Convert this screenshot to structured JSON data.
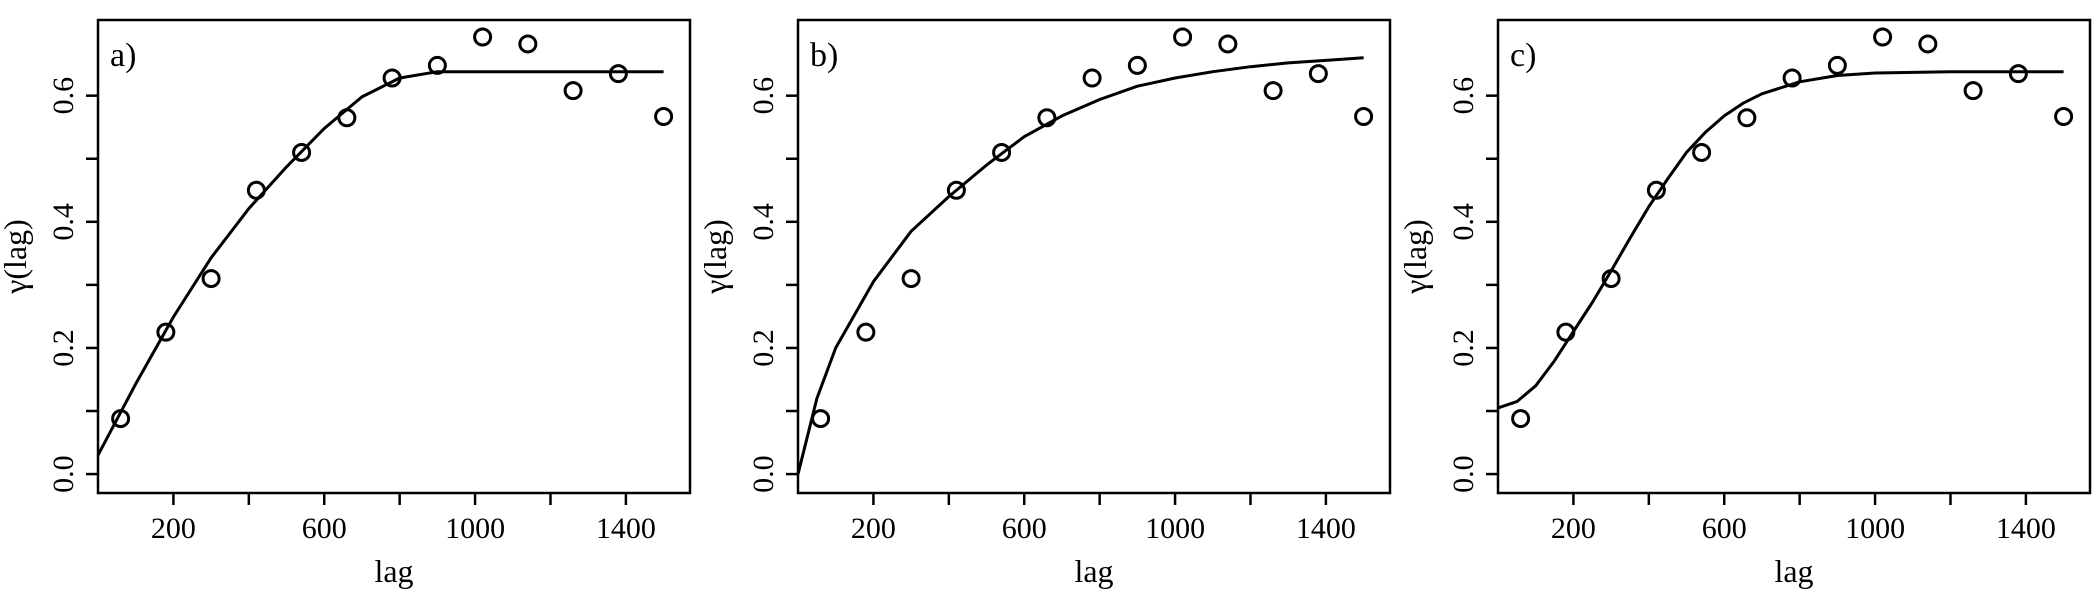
{
  "chart_data": [
    {
      "type": "scatter",
      "panel_label": "a)",
      "xlabel": "lag",
      "ylabel": "γ(lag)",
      "xlim": [
        0,
        1570
      ],
      "ylim": [
        -0.03,
        0.72
      ],
      "x_ticks": [
        200,
        600,
        1000,
        1400
      ],
      "y_ticks": [
        0.0,
        0.2,
        0.4,
        0.6
      ],
      "x_tick_labels": [
        "200",
        "600",
        "1000",
        "1400"
      ],
      "y_tick_labels": [
        "0.0",
        "0.2",
        "0.4",
        "0.6"
      ],
      "grid": false,
      "points": {
        "x": [
          60,
          180,
          300,
          420,
          540,
          660,
          780,
          900,
          1020,
          1140,
          1260,
          1380,
          1500
        ],
        "y": [
          0.088,
          0.225,
          0.31,
          0.45,
          0.51,
          0.565,
          0.628,
          0.648,
          0.693,
          0.682,
          0.608,
          0.635,
          0.567
        ]
      },
      "fitted_curve": {
        "x": [
          0,
          100,
          200,
          300,
          400,
          500,
          600,
          700,
          800,
          900,
          1000,
          1100,
          1200,
          1300,
          1400,
          1500
        ],
        "y": [
          0.03,
          0.143,
          0.249,
          0.343,
          0.421,
          0.487,
          0.548,
          0.598,
          0.628,
          0.638,
          0.638,
          0.638,
          0.638,
          0.638,
          0.638,
          0.638
        ]
      }
    },
    {
      "type": "scatter",
      "panel_label": "b)",
      "xlabel": "lag",
      "ylabel": "γ(lag)",
      "xlim": [
        0,
        1570
      ],
      "ylim": [
        -0.03,
        0.72
      ],
      "x_ticks": [
        200,
        600,
        1000,
        1400
      ],
      "y_ticks": [
        0.0,
        0.2,
        0.4,
        0.6
      ],
      "x_tick_labels": [
        "200",
        "600",
        "1000",
        "1400"
      ],
      "y_tick_labels": [
        "0.0",
        "0.2",
        "0.4",
        "0.6"
      ],
      "grid": false,
      "points": {
        "x": [
          60,
          180,
          300,
          420,
          540,
          660,
          780,
          900,
          1020,
          1140,
          1260,
          1380,
          1500
        ],
        "y": [
          0.088,
          0.225,
          0.31,
          0.45,
          0.51,
          0.565,
          0.628,
          0.648,
          0.693,
          0.682,
          0.608,
          0.635,
          0.567
        ]
      },
      "fitted_curve": {
        "x": [
          0,
          50,
          100,
          200,
          300,
          400,
          500,
          600,
          700,
          800,
          900,
          1000,
          1100,
          1200,
          1300,
          1400,
          1500
        ],
        "y": [
          0.0,
          0.12,
          0.2,
          0.305,
          0.385,
          0.44,
          0.49,
          0.535,
          0.568,
          0.594,
          0.615,
          0.628,
          0.638,
          0.646,
          0.652,
          0.656,
          0.66
        ]
      }
    },
    {
      "type": "scatter",
      "panel_label": "c)",
      "xlabel": "lag",
      "ylabel": "γ(lag)",
      "xlim": [
        0,
        1570
      ],
      "ylim": [
        -0.03,
        0.72
      ],
      "x_ticks": [
        200,
        600,
        1000,
        1400
      ],
      "y_ticks": [
        0.0,
        0.2,
        0.4,
        0.6
      ],
      "x_tick_labels": [
        "200",
        "600",
        "1000",
        "1400"
      ],
      "y_tick_labels": [
        "0.0",
        "0.2",
        "0.4",
        "0.6"
      ],
      "grid": false,
      "points": {
        "x": [
          60,
          180,
          300,
          420,
          540,
          660,
          780,
          900,
          1020,
          1140,
          1260,
          1380,
          1500
        ],
        "y": [
          0.088,
          0.225,
          0.31,
          0.45,
          0.51,
          0.565,
          0.628,
          0.648,
          0.693,
          0.682,
          0.608,
          0.635,
          0.567
        ]
      },
      "fitted_curve": {
        "x": [
          0,
          50,
          100,
          150,
          200,
          250,
          300,
          350,
          400,
          450,
          500,
          550,
          600,
          650,
          700,
          800,
          900,
          1000,
          1200,
          1500
        ],
        "y": [
          0.105,
          0.115,
          0.14,
          0.18,
          0.226,
          0.272,
          0.322,
          0.374,
          0.424,
          0.468,
          0.51,
          0.542,
          0.568,
          0.588,
          0.603,
          0.622,
          0.632,
          0.636,
          0.638,
          0.638
        ]
      }
    }
  ]
}
